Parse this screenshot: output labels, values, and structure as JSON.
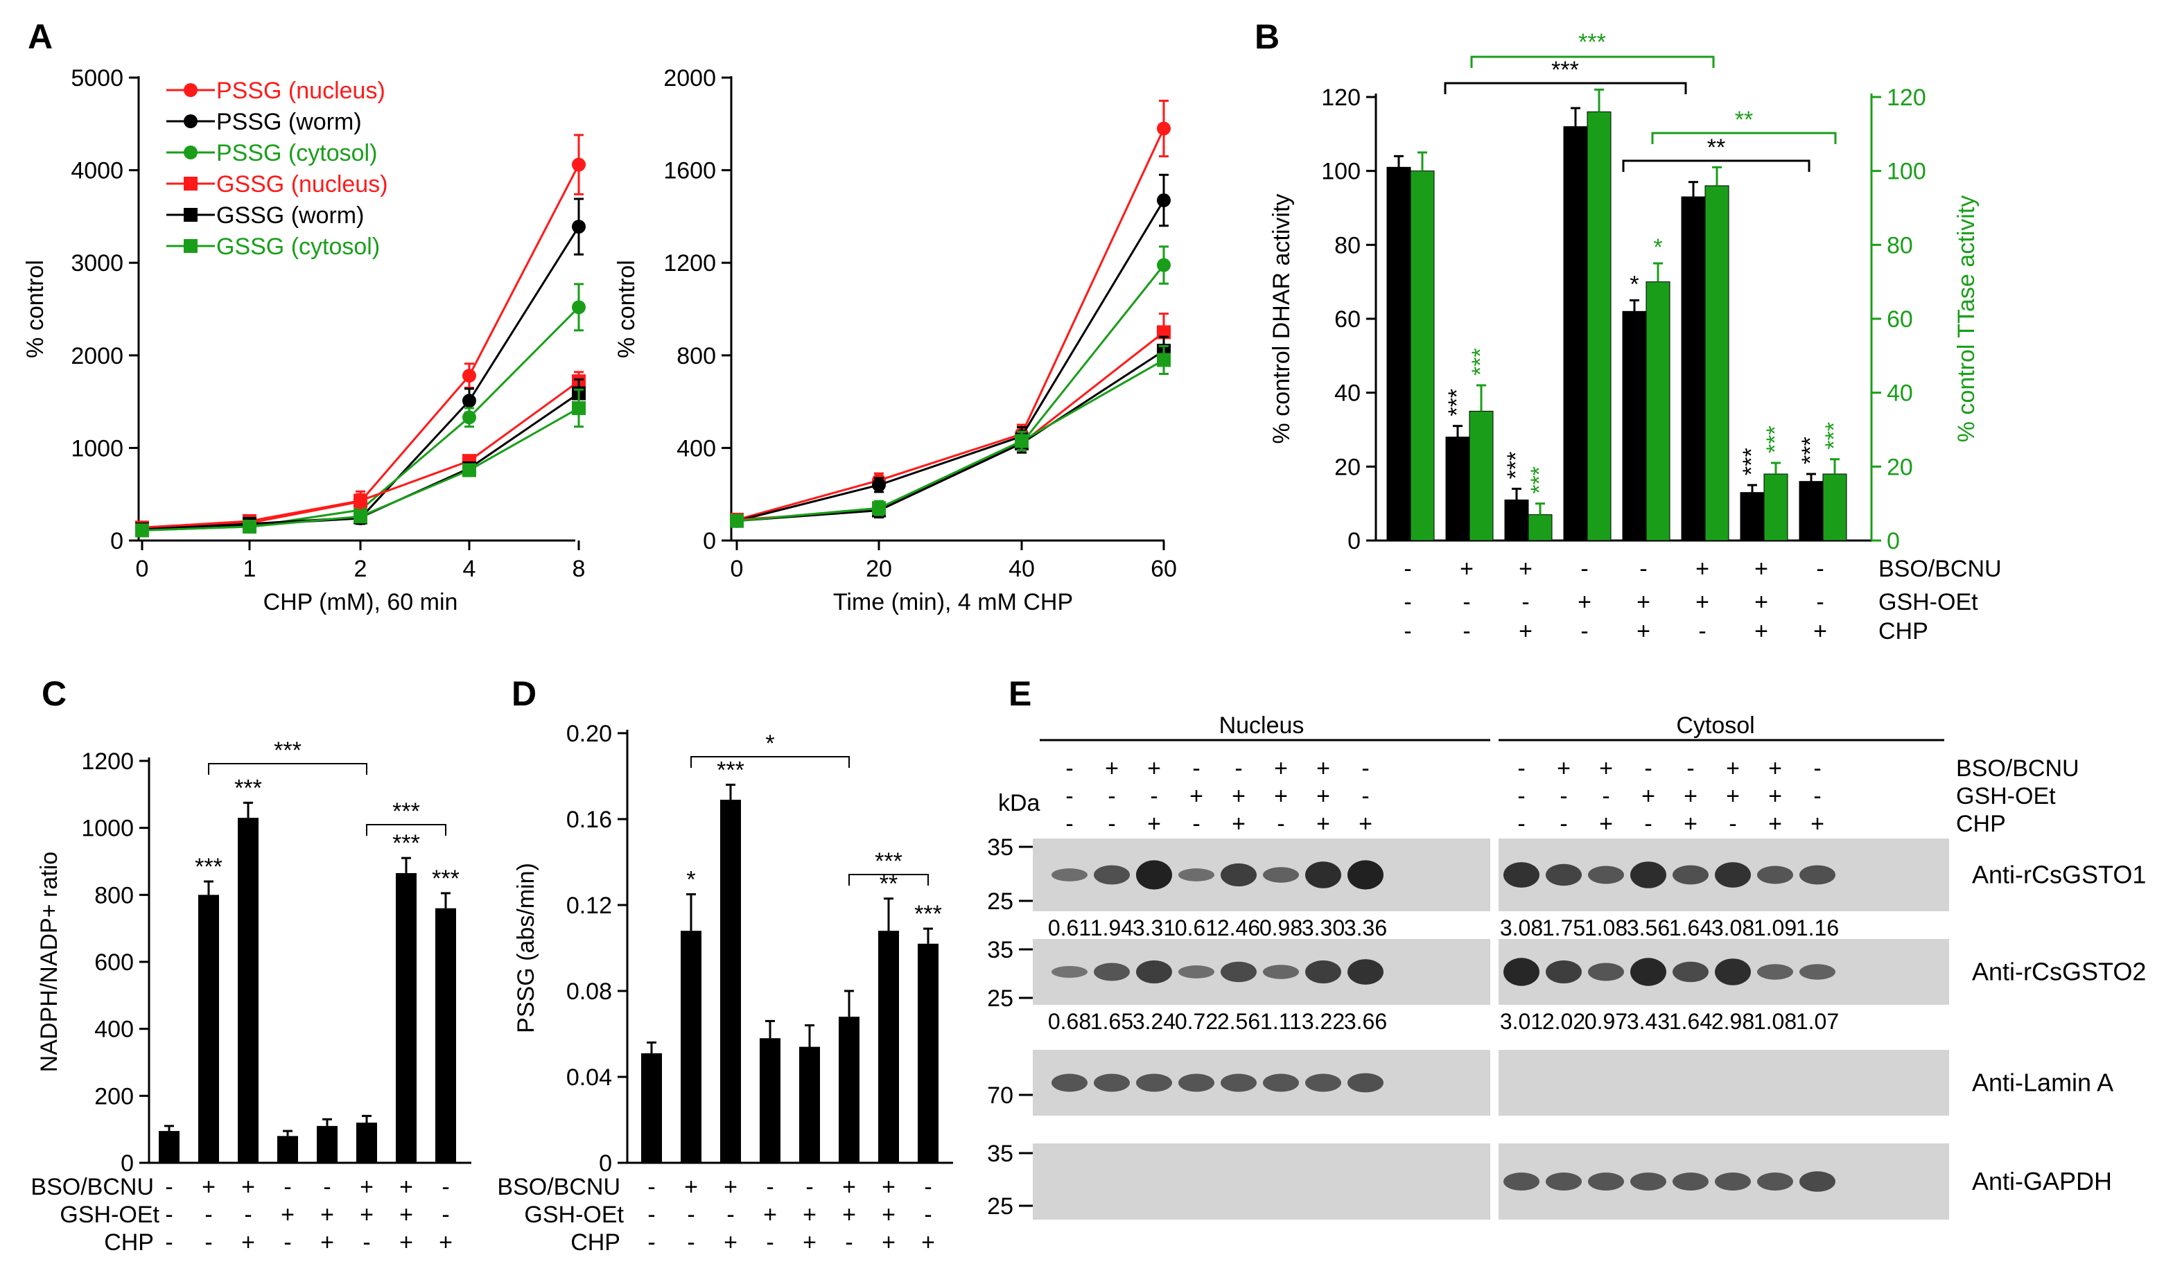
{
  "colors": {
    "red": "#ff1a1a",
    "black": "#000000",
    "green": "#1a9e1a",
    "blotBg": "#d4d4d4"
  },
  "panelA1": {
    "letter": "A",
    "ylabel": "% control",
    "xlabel": "CHP (mM), 60 min",
    "yticks": [
      "0",
      "1000",
      "2000",
      "3000",
      "4000",
      "5000"
    ],
    "xticks": [
      "0",
      "1",
      "2",
      "4",
      "8"
    ],
    "legend": [
      "PSSG (nucleus)",
      "PSSG (worm)",
      "PSSG (cytosol)",
      "GSSG (nucleus)",
      "GSSG (worm)",
      "GSSG (cytosol)"
    ]
  },
  "panelA2": {
    "ylabel": "% control",
    "xlabel": "Time (min), 4 mM CHP",
    "yticks": [
      "0",
      "400",
      "800",
      "1200",
      "1600",
      "2000"
    ],
    "xticks": [
      "0",
      "20",
      "40",
      "60"
    ]
  },
  "panelB": {
    "letter": "B",
    "ylabel_left": "% control DHAR activity",
    "ylabel_right": "% control TTase activity",
    "yticks": [
      "0",
      "20",
      "40",
      "60",
      "80",
      "100",
      "120"
    ],
    "rowlabels": [
      "BSO/BCNU",
      "GSH-OEt",
      "CHP"
    ],
    "rows": [
      [
        "-",
        "+",
        "+",
        "-",
        "-",
        "+",
        "+",
        "-"
      ],
      [
        "-",
        "-",
        "-",
        "+",
        "+",
        "+",
        "+",
        "-"
      ],
      [
        "-",
        "-",
        "+",
        "-",
        "+",
        "-",
        "+",
        "+"
      ]
    ],
    "sig_top_green": "***",
    "sig_top_black": "***",
    "sig_mid_green": "**",
    "sig_mid_black": "**",
    "bar_sig_black": [
      "",
      "***",
      "***",
      "",
      "*",
      "",
      "***",
      "***"
    ],
    "bar_sig_green": [
      "",
      "***",
      "***",
      "",
      "*",
      "",
      "***",
      "***"
    ]
  },
  "panelC": {
    "letter": "C",
    "ylabel": "NADPH/NADP+ ratio",
    "yticks": [
      "0",
      "200",
      "400",
      "600",
      "800",
      "1000",
      "1200"
    ],
    "rowlabels": [
      "BSO/BCNU",
      "GSH-OEt",
      "CHP"
    ],
    "rows": [
      [
        "-",
        "+",
        "+",
        "-",
        "-",
        "+",
        "+",
        "-"
      ],
      [
        "-",
        "-",
        "-",
        "+",
        "+",
        "+",
        "+",
        "-"
      ],
      [
        "-",
        "-",
        "+",
        "-",
        "+",
        "-",
        "+",
        "+"
      ]
    ],
    "bar_sig": [
      "",
      "***",
      "***",
      "",
      "",
      "",
      "***",
      "***"
    ],
    "brackets": [
      "***",
      "***"
    ]
  },
  "panelD": {
    "letter": "D",
    "ylabel": "PSSG (abs/min)",
    "yticks": [
      "0",
      "0.04",
      "0.08",
      "0.12",
      "0.16",
      "0.20"
    ],
    "rowlabels": [
      "BSO/BCNU",
      "GSH-OEt",
      "CHP"
    ],
    "rows": [
      [
        "-",
        "+",
        "+",
        "-",
        "-",
        "+",
        "+",
        "-"
      ],
      [
        "-",
        "-",
        "-",
        "+",
        "+",
        "+",
        "+",
        "-"
      ],
      [
        "-",
        "-",
        "+",
        "-",
        "+",
        "-",
        "+",
        "+"
      ]
    ],
    "bar_sig": [
      "",
      "*",
      "***",
      "",
      "",
      "",
      "**",
      "***"
    ],
    "brackets": [
      "*",
      "***"
    ]
  },
  "panelE": {
    "letter": "E",
    "nucleus": "Nucleus",
    "cytosol": "Cytosol",
    "kda": "kDa",
    "rowlabels": [
      "BSO/BCNU",
      "GSH-OEt",
      "CHP"
    ],
    "rows": [
      [
        "-",
        "+",
        "+",
        "-",
        "-",
        "+",
        "+",
        "-"
      ],
      [
        "-",
        "-",
        "-",
        "+",
        "+",
        "+",
        "+",
        "-"
      ],
      [
        "-",
        "-",
        "+",
        "-",
        "+",
        "-",
        "+",
        "+"
      ]
    ],
    "blots": [
      {
        "label": "Anti-rCsGSTO1",
        "markers": [
          "35",
          "25"
        ],
        "values": [
          "0.61",
          "1.94",
          "3.31",
          "0.61",
          "2.46",
          "0.98",
          "3.30",
          "3.36",
          "3.08",
          "1.75",
          "1.08",
          "3.56",
          "1.64",
          "3.08",
          "1.09",
          "1.16"
        ]
      },
      {
        "label": "Anti-rCsGSTO2",
        "markers": [
          "35",
          "25"
        ],
        "values": [
          "0.68",
          "1.65",
          "3.24",
          "0.72",
          "2.56",
          "1.11",
          "3.22",
          "3.66",
          "3.01",
          "2.02",
          "0.97",
          "3.43",
          "1.64",
          "2.98",
          "1.08",
          "1.07"
        ]
      },
      {
        "label": "Anti-Lamin A",
        "markers": [
          "70"
        ],
        "values": []
      },
      {
        "label": "Anti-GAPDH",
        "markers": [
          "35",
          "25"
        ],
        "values": []
      }
    ]
  },
  "chart_data": [
    {
      "type": "line",
      "xlabel": "CHP (mM), 60 min",
      "ylabel": "% control",
      "categories": [
        "0",
        "1",
        "2",
        "4",
        "8"
      ],
      "ylim": [
        0,
        5000
      ],
      "series": [
        {
          "name": "PSSG (nucleus)",
          "color": "red",
          "marker": "circle",
          "values": [
            130,
            190,
            420,
            1780,
            4060
          ],
          "err": [
            60,
            40,
            80,
            130,
            320
          ]
        },
        {
          "name": "PSSG (worm)",
          "color": "black",
          "marker": "circle",
          "values": [
            120,
            170,
            240,
            1510,
            3390
          ],
          "err": [
            60,
            40,
            60,
            130,
            300
          ]
        },
        {
          "name": "PSSG (cytosol)",
          "color": "green",
          "marker": "circle",
          "values": [
            110,
            150,
            330,
            1330,
            2520
          ],
          "err": [
            50,
            40,
            60,
            100,
            250
          ]
        },
        {
          "name": "GSSG (nucleus)",
          "color": "red",
          "marker": "square",
          "values": [
            140,
            210,
            430,
            860,
            1720
          ],
          "err": [
            60,
            40,
            100,
            60,
            100
          ]
        },
        {
          "name": "GSSG (worm)",
          "color": "black",
          "marker": "square",
          "values": [
            120,
            180,
            250,
            780,
            1590
          ],
          "err": [
            60,
            40,
            60,
            60,
            150
          ]
        },
        {
          "name": "GSSG (cytosol)",
          "color": "green",
          "marker": "square",
          "values": [
            110,
            150,
            260,
            760,
            1430
          ],
          "err": [
            50,
            40,
            60,
            60,
            200
          ]
        }
      ]
    },
    {
      "type": "line",
      "xlabel": "Time (min), 4 mM CHP",
      "ylabel": "% control",
      "categories": [
        "0",
        "20",
        "40",
        "60"
      ],
      "ylim": [
        0,
        2000
      ],
      "series": [
        {
          "name": "PSSG (nucleus)",
          "color": "red",
          "marker": "circle",
          "values": [
            90,
            260,
            460,
            1780
          ],
          "err": [
            20,
            30,
            40,
            120
          ]
        },
        {
          "name": "PSSG (worm)",
          "color": "black",
          "marker": "circle",
          "values": [
            85,
            240,
            450,
            1470
          ],
          "err": [
            20,
            30,
            40,
            110
          ]
        },
        {
          "name": "PSSG (cytosol)",
          "color": "green",
          "marker": "circle",
          "values": [
            85,
            140,
            420,
            1190
          ],
          "err": [
            20,
            30,
            40,
            80
          ]
        },
        {
          "name": "GSSG (nucleus)",
          "color": "red",
          "marker": "square",
          "values": [
            90,
            130,
            420,
            900
          ],
          "err": [
            20,
            30,
            40,
            80
          ]
        },
        {
          "name": "GSSG (worm)",
          "color": "black",
          "marker": "square",
          "values": [
            85,
            130,
            420,
            820
          ],
          "err": [
            20,
            30,
            40,
            60
          ]
        },
        {
          "name": "GSSG (cytosol)",
          "color": "green",
          "marker": "square",
          "values": [
            85,
            140,
            430,
            780
          ],
          "err": [
            20,
            30,
            40,
            60
          ]
        }
      ]
    },
    {
      "type": "bar",
      "ylabel": "% control DHAR activity",
      "y2label": "% control TTase activity",
      "ylim": [
        0,
        120
      ],
      "series": [
        {
          "name": "DHAR",
          "color": "black",
          "values": [
            101,
            28,
            11,
            112,
            62,
            93,
            13,
            16
          ],
          "err": [
            3,
            3,
            3,
            5,
            3,
            4,
            2,
            2
          ]
        },
        {
          "name": "TTase",
          "color": "green",
          "values": [
            100,
            35,
            7,
            116,
            70,
            96,
            18,
            18
          ],
          "err": [
            5,
            7,
            3,
            6,
            5,
            5,
            3,
            4
          ]
        }
      ]
    },
    {
      "type": "bar",
      "ylabel": "NADPH/NADP+ ratio",
      "ylim": [
        0,
        1200
      ],
      "series": [
        {
          "name": "",
          "color": "black",
          "values": [
            95,
            800,
            1030,
            80,
            110,
            120,
            865,
            760
          ],
          "err": [
            15,
            40,
            45,
            15,
            20,
            20,
            45,
            45
          ]
        }
      ]
    },
    {
      "type": "bar",
      "ylabel": "PSSG (abs/min)",
      "ylim": [
        0,
        0.2
      ],
      "series": [
        {
          "name": "",
          "color": "black",
          "values": [
            0.051,
            0.108,
            0.169,
            0.058,
            0.054,
            0.068,
            0.108,
            0.102
          ],
          "err": [
            0.005,
            0.017,
            0.007,
            0.008,
            0.01,
            0.012,
            0.015,
            0.007
          ]
        }
      ]
    }
  ]
}
